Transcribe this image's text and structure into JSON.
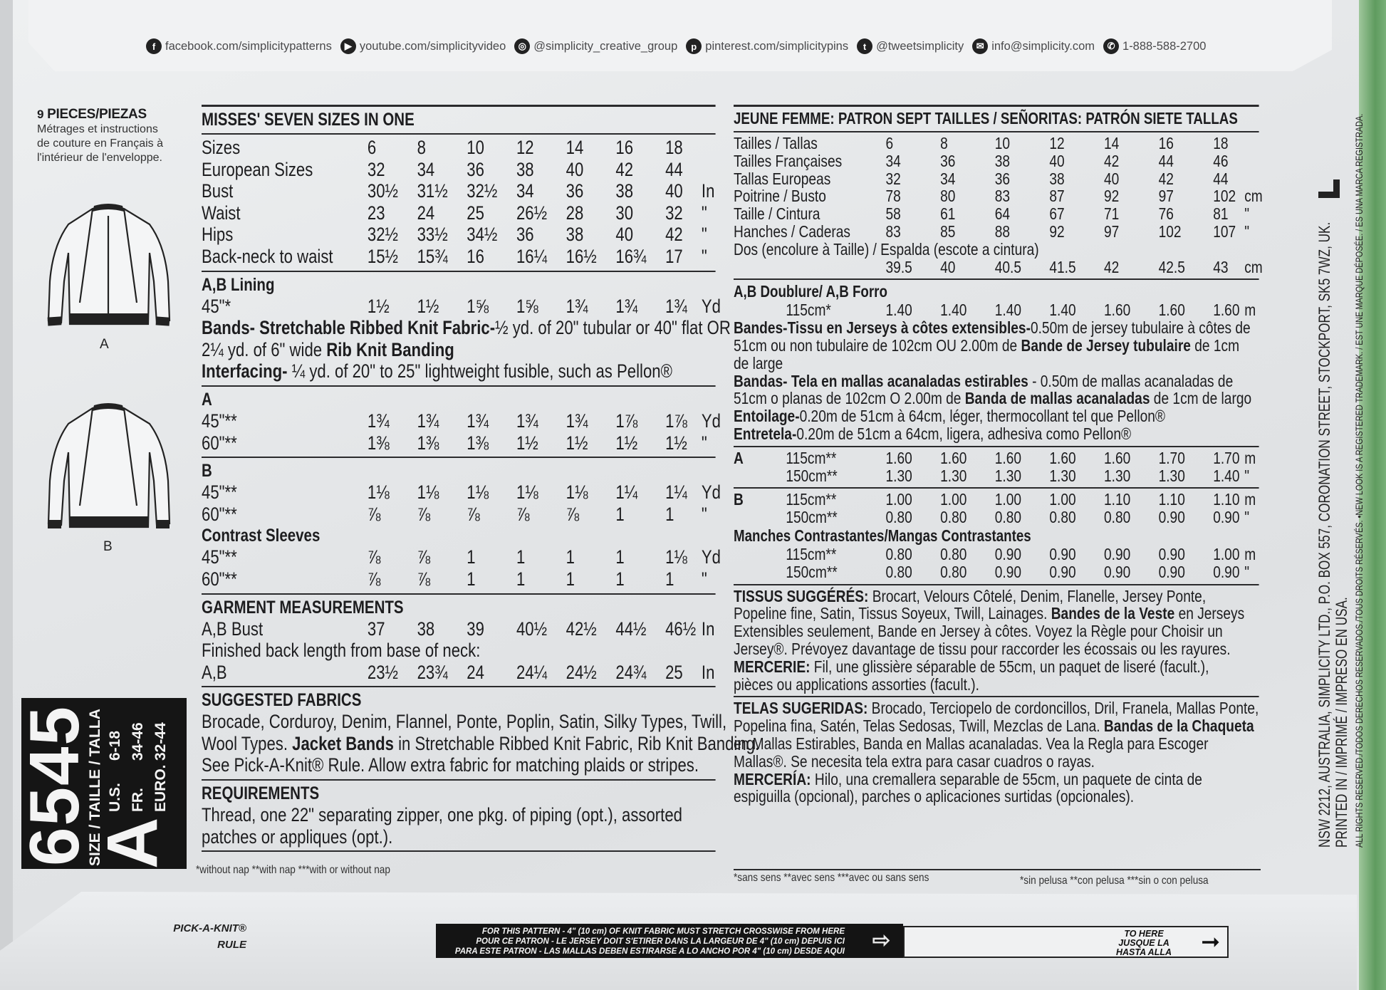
{
  "social": [
    {
      "icon": "facebook-icon",
      "glyph": "f",
      "text": "facebook.com/simplicitypatterns"
    },
    {
      "icon": "youtube-icon",
      "glyph": "▶",
      "text": "youtube.com/simplicityvideo"
    },
    {
      "icon": "instagram-icon",
      "glyph": "◎",
      "text": "@simplicity_creative_group"
    },
    {
      "icon": "pinterest-icon",
      "glyph": "p",
      "text": "pinterest.com/simplicitypins"
    },
    {
      "icon": "twitter-icon",
      "glyph": "t",
      "text": "@tweetsimplicity"
    },
    {
      "icon": "email-icon",
      "glyph": "✉",
      "text": "info@simplicity.com"
    },
    {
      "icon": "phone-icon",
      "glyph": "✆",
      "text": "1-888-588-2700"
    }
  ],
  "left": {
    "pieces_count": "9",
    "pieces_label": "PIECES/PIEZAS",
    "french_note": [
      "Métrages et instructions",
      "de couture en Français à",
      "l'intérieur de l'enveloppe."
    ],
    "view_a": "A",
    "view_b": "B"
  },
  "size_box": {
    "pattern_number": "6545",
    "size_label": "SIZE / TAILLE / TALLA",
    "size_letter": "A",
    "ranges": [
      {
        "label": "U.S.",
        "value": "6-18"
      },
      {
        "label": "FR.",
        "value": "34-46"
      },
      {
        "label": "EURO.",
        "value": "32-44"
      }
    ]
  },
  "english": {
    "blocks": [
      {
        "type": "rule",
        "thick": true
      },
      {
        "type": "title",
        "text": "MISSES' SEVEN SIZES IN ONE"
      },
      {
        "type": "rule"
      },
      {
        "type": "row",
        "label": "Sizes",
        "values": [
          "6",
          "8",
          "10",
          "12",
          "14",
          "16",
          "18"
        ],
        "unit": ""
      },
      {
        "type": "row",
        "label": "European Sizes",
        "values": [
          "32",
          "34",
          "36",
          "38",
          "40",
          "42",
          "44"
        ],
        "unit": ""
      },
      {
        "type": "row",
        "label": "Bust",
        "values": [
          "30½",
          "31½",
          "32½",
          "34",
          "36",
          "38",
          "40"
        ],
        "unit": "In"
      },
      {
        "type": "row",
        "label": "Waist",
        "values": [
          "23",
          "24",
          "25",
          "26½",
          "28",
          "30",
          "32"
        ],
        "unit": "\""
      },
      {
        "type": "row",
        "label": "Hips",
        "values": [
          "32½",
          "33½",
          "34½",
          "36",
          "38",
          "40",
          "42"
        ],
        "unit": "\""
      },
      {
        "type": "row",
        "label": "Back-neck to waist",
        "values": [
          "15½",
          "15¾",
          "16",
          "16¼",
          "16½",
          "16¾",
          "17"
        ],
        "unit": "\""
      },
      {
        "type": "rule"
      },
      {
        "type": "heading",
        "text": "A,B Lining"
      },
      {
        "type": "row",
        "label": "45\"*",
        "values": [
          "1½",
          "1½",
          "1⅝",
          "1⅝",
          "1¾",
          "1¾",
          "1¾"
        ],
        "unit": "Yd"
      },
      {
        "type": "para",
        "lines": [
          [
            {
              "b": true,
              "t": "Bands- Stretchable Ribbed Knit Fabric-"
            },
            {
              "b": false,
              "t": "½ yd. of 20\" tubular or 40\" flat OR"
            }
          ],
          [
            {
              "b": false,
              "t": "2¼ yd. of 6\" wide "
            },
            {
              "b": true,
              "t": "Rib Knit Banding"
            }
          ],
          [
            {
              "b": true,
              "t": "Interfacing-"
            },
            {
              "b": false,
              "t": " ¼ yd. of 20\" to 25\" lightweight fusible, such as Pellon®"
            }
          ]
        ]
      },
      {
        "type": "rule"
      },
      {
        "type": "heading",
        "text": "A"
      },
      {
        "type": "row",
        "label": "45\"**",
        "values": [
          "1¾",
          "1¾",
          "1¾",
          "1¾",
          "1¾",
          "1⅞",
          "1⅞"
        ],
        "unit": "Yd"
      },
      {
        "type": "row",
        "label": "60\"**",
        "values": [
          "1⅜",
          "1⅜",
          "1⅜",
          "1½",
          "1½",
          "1½",
          "1½"
        ],
        "unit": "\""
      },
      {
        "type": "rule"
      },
      {
        "type": "heading",
        "text": "B"
      },
      {
        "type": "row",
        "label": "45\"**",
        "values": [
          "1⅛",
          "1⅛",
          "1⅛",
          "1⅛",
          "1⅛",
          "1¼",
          "1¼"
        ],
        "unit": "Yd"
      },
      {
        "type": "row",
        "label": "60\"**",
        "values": [
          "⅞",
          "⅞",
          "⅞",
          "⅞",
          "⅞",
          "1",
          "1"
        ],
        "unit": "\""
      },
      {
        "type": "heading",
        "text": "Contrast Sleeves"
      },
      {
        "type": "row",
        "label": "45\"**",
        "values": [
          "⅞",
          "⅞",
          "1",
          "1",
          "1",
          "1",
          "1⅛"
        ],
        "unit": "Yd"
      },
      {
        "type": "row",
        "label": "60\"**",
        "values": [
          "⅞",
          "⅞",
          "1",
          "1",
          "1",
          "1",
          "1"
        ],
        "unit": "\""
      },
      {
        "type": "rule"
      },
      {
        "type": "heading",
        "text": "GARMENT MEASUREMENTS"
      },
      {
        "type": "row",
        "label": "A,B Bust",
        "values": [
          "37",
          "38",
          "39",
          "40½",
          "42½",
          "44½",
          "46½"
        ],
        "unit": "In"
      },
      {
        "type": "para",
        "lines": [
          [
            {
              "b": false,
              "t": "Finished back length from base of neck:"
            }
          ]
        ]
      },
      {
        "type": "row",
        "label": "A,B",
        "values": [
          "23½",
          "23¾",
          "24",
          "24¼",
          "24½",
          "24¾",
          "25"
        ],
        "unit": "In"
      },
      {
        "type": "rule"
      },
      {
        "type": "heading",
        "text": "SUGGESTED FABRICS"
      },
      {
        "type": "para",
        "lines": [
          [
            {
              "b": false,
              "t": "Brocade, Corduroy, Denim, Flannel, Ponte, Poplin, Satin, Silky Types, Twill,"
            }
          ],
          [
            {
              "b": false,
              "t": "Wool Types. "
            },
            {
              "b": true,
              "t": "Jacket Bands"
            },
            {
              "b": false,
              "t": " in Stretchable Ribbed Knit Fabric, Rib Knit Banding."
            }
          ],
          [
            {
              "b": false,
              "t": "See Pick-A-Knit® Rule. Allow extra fabric for matching plaids or stripes."
            }
          ]
        ]
      },
      {
        "type": "rule"
      },
      {
        "type": "heading",
        "text": "REQUIREMENTS"
      },
      {
        "type": "para",
        "lines": [
          [
            {
              "b": false,
              "t": "Thread, one 22\" separating zipper, one pkg. of piping (opt.), assorted"
            }
          ],
          [
            {
              "b": false,
              "t": "patches or appliques (opt.)."
            }
          ]
        ]
      },
      {
        "type": "rule"
      }
    ],
    "footnote": "*without nap   **with nap   ***with or without nap"
  },
  "french": {
    "blocks": [
      {
        "type": "rule",
        "thick": true
      },
      {
        "type": "title",
        "text": "JEUNE FEMME: PATRON SEPT TAILLES / SEÑORITAS: PATRÓN SIETE TALLAS"
      },
      {
        "type": "rule"
      },
      {
        "type": "row",
        "label": "Tailles / Tallas",
        "values": [
          "6",
          "8",
          "10",
          "12",
          "14",
          "16",
          "18"
        ],
        "unit": ""
      },
      {
        "type": "row",
        "label": "Tailles Françaises",
        "values": [
          "34",
          "36",
          "38",
          "40",
          "42",
          "44",
          "46"
        ],
        "unit": ""
      },
      {
        "type": "row",
        "label": "Tallas Europeas",
        "values": [
          "32",
          "34",
          "36",
          "38",
          "40",
          "42",
          "44"
        ],
        "unit": ""
      },
      {
        "type": "row",
        "label": "Poitrine / Busto",
        "values": [
          "78",
          "80",
          "83",
          "87",
          "92",
          "97",
          "102"
        ],
        "unit": "cm"
      },
      {
        "type": "row",
        "label": "Taille / Cintura",
        "values": [
          "58",
          "61",
          "64",
          "67",
          "71",
          "76",
          "81"
        ],
        "unit": "\""
      },
      {
        "type": "row",
        "label": "Hanches / Caderas",
        "values": [
          "83",
          "85",
          "88",
          "92",
          "97",
          "102",
          "107"
        ],
        "unit": "\""
      },
      {
        "type": "para",
        "lines": [
          [
            {
              "b": false,
              "t": "Dos (encolure à Taille) / Espalda (escote a cintura)"
            }
          ]
        ]
      },
      {
        "type": "row",
        "label": "",
        "values": [
          "39.5",
          "40",
          "40.5",
          "41.5",
          "42",
          "42.5",
          "43"
        ],
        "unit": "cm"
      },
      {
        "type": "rule"
      },
      {
        "type": "heading",
        "text": "A,B Doublure/ A,B Forro"
      },
      {
        "type": "row",
        "tag": "",
        "label": "115cm*",
        "values": [
          "1.40",
          "1.40",
          "1.40",
          "1.40",
          "1.60",
          "1.60",
          "1.60"
        ],
        "unit": "m"
      },
      {
        "type": "para",
        "lines": [
          [
            {
              "b": true,
              "t": "Bandes-Tissu en Jerseys à côtes extensibles-"
            },
            {
              "b": false,
              "t": "0.50m de jersey tubulaire à côtes de"
            }
          ],
          [
            {
              "b": false,
              "t": "51cm ou non tubulaire de 102cm OU 2.00m de "
            },
            {
              "b": true,
              "t": "Bande de Jersey tubulaire"
            },
            {
              "b": false,
              "t": " de 1cm"
            }
          ],
          [
            {
              "b": false,
              "t": "de large"
            }
          ],
          [
            {
              "b": true,
              "t": "Bandas- Tela en  mallas acanaladas estirables"
            },
            {
              "b": false,
              "t": " - 0.50m de mallas acanaladas de"
            }
          ],
          [
            {
              "b": false,
              "t": "51cm o planas de 102cm O 2.00m de "
            },
            {
              "b": true,
              "t": "Banda de mallas acanaladas"
            },
            {
              "b": false,
              "t": "  de 1cm de largo"
            }
          ],
          [
            {
              "b": true,
              "t": "Entoilage-"
            },
            {
              "b": false,
              "t": "0.20m de 51cm à 64cm, léger, thermocollant tel que Pellon®"
            }
          ],
          [
            {
              "b": true,
              "t": "Entretela-"
            },
            {
              "b": false,
              "t": "0.20m de 51cm a 64cm, ligera, adhesiva como Pellon®"
            }
          ]
        ]
      },
      {
        "type": "rule"
      },
      {
        "type": "row",
        "tag": "A",
        "label": "115cm**",
        "values": [
          "1.60",
          "1.60",
          "1.60",
          "1.60",
          "1.60",
          "1.70",
          "1.70"
        ],
        "unit": "m"
      },
      {
        "type": "row",
        "tag": "",
        "label": "150cm**",
        "values": [
          "1.30",
          "1.30",
          "1.30",
          "1.30",
          "1.30",
          "1.30",
          "1.40"
        ],
        "unit": "\""
      },
      {
        "type": "rule"
      },
      {
        "type": "row",
        "tag": "B",
        "label": "115cm**",
        "values": [
          "1.00",
          "1.00",
          "1.00",
          "1.00",
          "1.10",
          "1.10",
          "1.10"
        ],
        "unit": "m"
      },
      {
        "type": "row",
        "tag": "",
        "label": "150cm**",
        "values": [
          "0.80",
          "0.80",
          "0.80",
          "0.80",
          "0.80",
          "0.90",
          "0.90"
        ],
        "unit": "\""
      },
      {
        "type": "heading",
        "text": "Manches Contrastantes/Mangas Contrastantes"
      },
      {
        "type": "row",
        "tag": "",
        "label": "115cm**",
        "values": [
          "0.80",
          "0.80",
          "0.90",
          "0.90",
          "0.90",
          "0.90",
          "1.00"
        ],
        "unit": "m"
      },
      {
        "type": "row",
        "tag": "",
        "label": "150cm**",
        "values": [
          "0.80",
          "0.80",
          "0.90",
          "0.90",
          "0.90",
          "0.90",
          "0.90"
        ],
        "unit": "\""
      },
      {
        "type": "rule"
      },
      {
        "type": "para",
        "lines": [
          [
            {
              "b": true,
              "t": "TISSUS SUGGÉRÉS:"
            },
            {
              "b": false,
              "t": " Brocart, Velours Côtelé, Denim, Flanelle, Jersey Ponte,"
            }
          ],
          [
            {
              "b": false,
              "t": "Popeline fine, Satin, Tissus Soyeux, Twill, Lainages. "
            },
            {
              "b": true,
              "t": "Bandes de la Veste"
            },
            {
              "b": false,
              "t": " en Jerseys"
            }
          ],
          [
            {
              "b": false,
              "t": "Extensibles seulement, Bande en Jersey à côtes. Voyez la Règle pour Choisir un"
            }
          ],
          [
            {
              "b": false,
              "t": "Jersey®. Prévoyez davantage de tissu pour raccorder les écossais ou les rayures."
            }
          ],
          [
            {
              "b": true,
              "t": "MERCERIE:"
            },
            {
              "b": false,
              "t": " Fil, une glissière séparable de 55cm, un paquet de liseré (facult.),"
            }
          ],
          [
            {
              "b": false,
              "t": "pièces ou applications assorties (facult.)."
            }
          ]
        ]
      },
      {
        "type": "rule"
      },
      {
        "type": "para",
        "lines": [
          [
            {
              "b": true,
              "t": "TELAS SUGERIDAS:"
            },
            {
              "b": false,
              "t": " Brocado, Terciopelo de cordoncillos, Dril, Franela, Mallas Ponte,"
            }
          ],
          [
            {
              "b": false,
              "t": "Popelina fina, Satén, Telas Sedosas, Twill, Mezclas de Lana. "
            },
            {
              "b": true,
              "t": "Bandas de la Chaqueta"
            }
          ],
          [
            {
              "b": false,
              "t": "en Mallas Estirables, Banda en Mallas acanaladas. Vea la Regla para Escoger"
            }
          ],
          [
            {
              "b": false,
              "t": "Mallas®. Se necesita tela extra para casar cuadros o rayas."
            }
          ],
          [
            {
              "b": true,
              "t": "MERCERÍA:"
            },
            {
              "b": false,
              "t": " Hilo, una cremallera separable de 55cm, un paquete de cinta de"
            }
          ],
          [
            {
              "b": false,
              "t": "espiguilla (opcional), parches o aplicaciones surtidas (opcionales)."
            }
          ]
        ]
      }
    ],
    "footnote_fr": "*sans sens   **avec sens   ***avec ou sans sens",
    "footnote_es": "*sin pelusa   **con pelusa   ***sin o con pelusa"
  },
  "imprint": {
    "address": "NSW 2212, AUSTRALIA, SIMPLICITY LTD., P.O. BOX 557, CORONATION STREET, STOCKPORT, SK5 7WZ, UK.",
    "printed": "PRINTED IN / IMPRIMÉ / IMPRESO EN USA.",
    "rights": "ALL RIGHTS RESERVED./TODOS DERECHOS RESERVADOS./TOUS DROITS RÉSERVÉS. •NEW LOOK IS A REGISTERED TRADEMARK. / EST UNE MARQUE DÉPOSÉE. / ES UNA MARCA REGISTRADA.",
    "logo_letter": "L"
  },
  "ruler": {
    "label_line1": "PICK-A-KNIT®",
    "label_line2": "RULE",
    "instructions": [
      "FOR THIS PATTERN - 4\" (10 cm) OF KNIT FABRIC MUST STRETCH CROSSWISE FROM HERE",
      "POUR CE PATRON - LE JERSEY DOIT S'ETIRER DANS LA LARGEUR DE 4\" (10 cm) DEPUIS ICI",
      "PARA ESTE PATRON - LAS MALLAS DEBEN ESTIRARSE A LO ANCHO POR 4\" (10 cm) DESDE AQUI"
    ],
    "end_text": [
      "TO HERE",
      "JUSQUE LA",
      "HASTA ALLA"
    ]
  },
  "colors": {
    "ink": "#1d1d1f",
    "paper": "#e6e8ea",
    "size_box": "#151515",
    "edge_green": "#5f9b5f"
  }
}
